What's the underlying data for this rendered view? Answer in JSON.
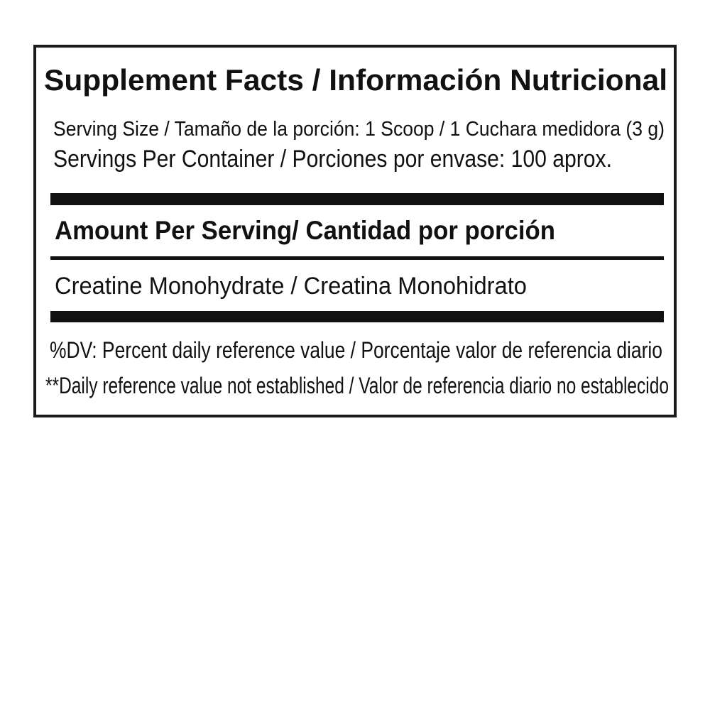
{
  "label": {
    "title": "Supplement Facts / Información Nutricional",
    "serving_size": "Serving Size / Tamaño de la porción: 1 Scoop / 1 Cuchara medidora (3 g)",
    "servings_per_container": "Servings Per Container / Porciones por envase: 100 aprox.",
    "amount_header": "Amount Per Serving/ Cantidad por porción",
    "ingredients": [
      {
        "name": "Creatine Monohydrate / Creatina Monohidrato"
      }
    ],
    "footnotes": [
      "%DV: Percent daily reference value / Porcentaje valor de referencia diario",
      "**Daily reference value not established /  Valor de referencia diario no establecido"
    ]
  }
}
